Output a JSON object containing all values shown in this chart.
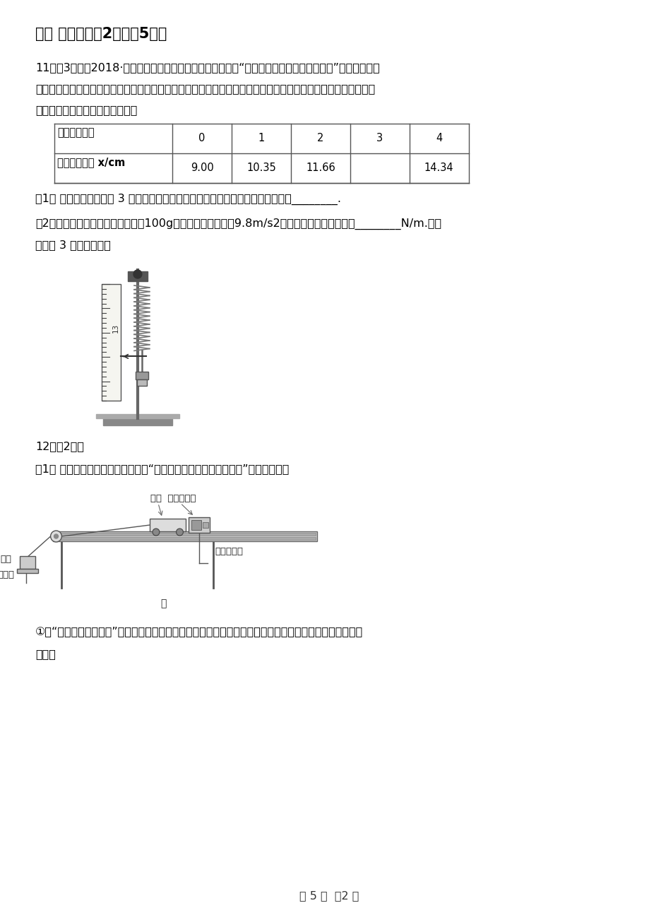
{
  "bg_color": "#ffffff",
  "page_width": 9.2,
  "page_height": 13.02,
  "section_header": "三、 实验题（共2题；共5分）",
  "q11_header": "11．（3分）（2018·桂林模拟）某同学用如图所示的装置做“探究弹力和弹簧伸长量的关系”的实验．他先",
  "q11_line2": "读出不挂钉码时弹簧下端指针所指刻度尺的刻度，然后在弹簧下端挂上钉码，并逐个增加鑉码，分别记录指针所指",
  "q11_line3": "刻度尺的刻度，所得数据列表如下",
  "table_col0_header": "鑉码数（个）",
  "table_col_headers": [
    "0",
    "1",
    "2",
    "3",
    "4"
  ],
  "table_row2_label": "刻度尺的刻度 x/cm",
  "table_row2_values": [
    "9.00",
    "10.35",
    "11.66",
    "",
    "14.34"
  ],
  "q11_sub1": "（1） 当在弹簧下端挂上 3 个鑉码时，指针所示位置如图所示，请将上表补充完整________.",
  "q11_sub2": "（2）已知实验所用单个鑉码质量为100g，当地重力加速度为9.8m/s2，则该弹簧的力度系数为________N/m.（结",
  "q11_sub2_line2": "果保留 3 位有效数字）",
  "q12_header": "12．（2分）",
  "q12_sub1": "（1） 如图甲所示为某同学所安装的“探究加速度与力、质量的关系”的实验装置。",
  "q12_label_xiao_che": "小车  打点计时器",
  "q12_label_zha_ma": "砖码",
  "q12_label_zha_ma_pan": "砖码盘",
  "q12_label_jie": "接交流电源",
  "q12_label_jia": "甲",
  "q12_sub2_line1": "①在“验证牛顿第二定律”的实验中，为了使小车受到合外力等于砖码和砖码盘的总重量，通常采用如下两个",
  "q12_sub2_line2": "措施：",
  "page_footer": "第 5 页  共2 页"
}
